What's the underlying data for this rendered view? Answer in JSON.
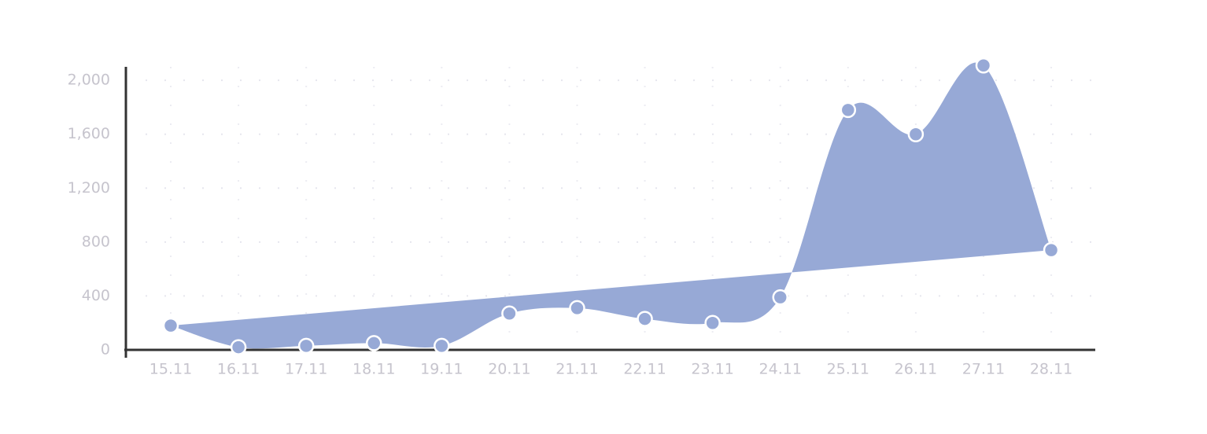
{
  "chart_data": {
    "type": "area",
    "categories": [
      "15.11",
      "16.11",
      "17.11",
      "18.11",
      "19.11",
      "20.11",
      "21.11",
      "22.11",
      "23.11",
      "24.11",
      "25.11",
      "26.11",
      "27.11",
      "28.11"
    ],
    "values": [
      180,
      20,
      30,
      50,
      30,
      270,
      310,
      230,
      200,
      390,
      1780,
      1600,
      2110,
      740
    ],
    "color": "#97a9d6",
    "ylim": [
      0,
      2100
    ],
    "yticks": [
      0,
      400,
      800,
      {
        "value": 1200,
        "label": "1,200"
      },
      {
        "value": 1600,
        "label": "1,600"
      },
      {
        "value": 2000,
        "label": "2,000"
      }
    ],
    "grid": true
  }
}
